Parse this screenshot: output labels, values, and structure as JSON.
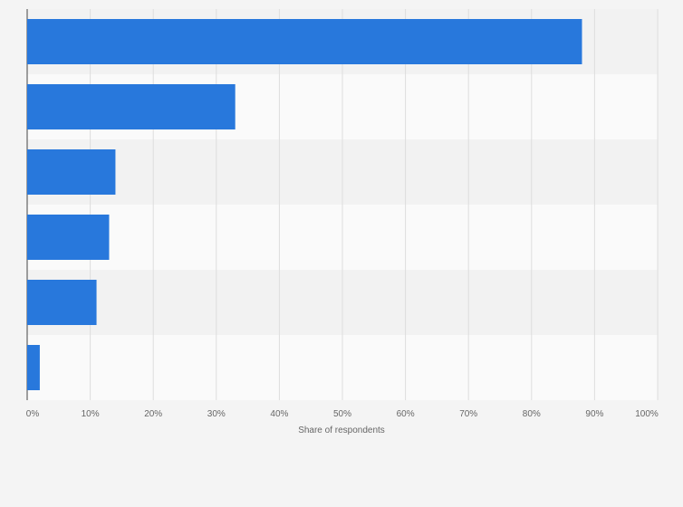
{
  "chart_data": {
    "type": "bar",
    "orientation": "horizontal",
    "categories": [
      "",
      "",
      "",
      "",
      "",
      ""
    ],
    "values": [
      88,
      33,
      14,
      13,
      11,
      2
    ],
    "xlabel": "Share of respondents",
    "ylabel": "",
    "xlim": [
      0,
      100
    ],
    "x_ticks": [
      "0%",
      "10%",
      "20%",
      "30%",
      "40%",
      "50%",
      "60%",
      "70%",
      "80%",
      "90%",
      "100%"
    ],
    "grid": true,
    "bar_color": "#2878dc",
    "band_colors": [
      "#f2f2f2",
      "#fafafa"
    ]
  }
}
